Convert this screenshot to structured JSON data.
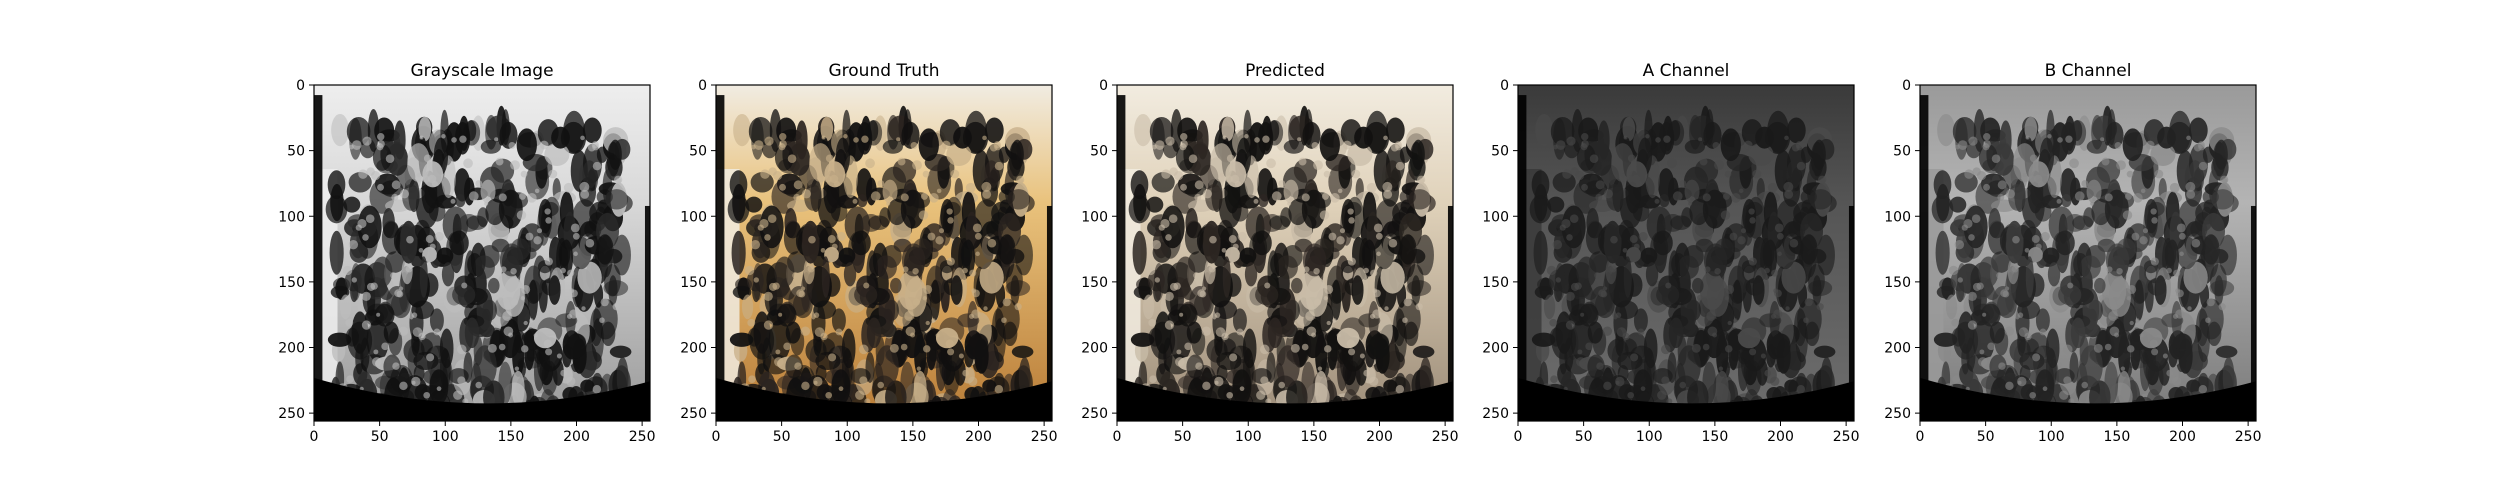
{
  "chart_data": [
    {
      "type": "image",
      "title": "Grayscale Image",
      "xticks": [
        0,
        50,
        100,
        150,
        200,
        250
      ],
      "yticks": [
        0,
        50,
        100,
        150,
        200,
        250
      ],
      "xlim": [
        0,
        256
      ],
      "ylim": [
        256,
        0
      ],
      "colors": [
        "#eeeeee",
        "#d8d8d8",
        "#9a9a9a",
        "#2a2a2a",
        "#111111",
        "#bdbdbd"
      ]
    },
    {
      "type": "image",
      "title": "Ground Truth",
      "xticks": [
        0,
        50,
        100,
        150,
        200,
        250
      ],
      "yticks": [
        0,
        50,
        100,
        150,
        200,
        250
      ],
      "xlim": [
        0,
        256
      ],
      "ylim": [
        256,
        0
      ],
      "colors": [
        "#f1ece2",
        "#e9c27c",
        "#b97c36",
        "#2b2420",
        "#111010",
        "#c8b08a"
      ]
    },
    {
      "type": "image",
      "title": "Predicted",
      "xticks": [
        0,
        50,
        100,
        150,
        200,
        250
      ],
      "yticks": [
        0,
        50,
        100,
        150,
        200,
        250
      ],
      "xlim": [
        0,
        256
      ],
      "ylim": [
        256,
        0
      ],
      "colors": [
        "#f2ece0",
        "#e0d2ba",
        "#9c8c78",
        "#2c2622",
        "#121110",
        "#c9bca8"
      ]
    },
    {
      "type": "image",
      "title": "A Channel",
      "xticks": [
        0,
        50,
        100,
        150,
        200,
        250
      ],
      "yticks": [
        0,
        50,
        100,
        150,
        200,
        250
      ],
      "xlim": [
        0,
        256
      ],
      "ylim": [
        256,
        0
      ],
      "colors": [
        "#3a3a3a",
        "#555555",
        "#6e6e6e",
        "#262626",
        "#1a1a1a",
        "#4a4a4a"
      ]
    },
    {
      "type": "image",
      "title": "B Channel",
      "xticks": [
        0,
        50,
        100,
        150,
        200,
        250
      ],
      "yticks": [
        0,
        50,
        100,
        150,
        200,
        250
      ],
      "xlim": [
        0,
        256
      ],
      "ylim": [
        256,
        0
      ],
      "colors": [
        "#9a9a9a",
        "#b4b4b4",
        "#7a7a7a",
        "#3a3a3a",
        "#222222",
        "#8a8a8a"
      ]
    }
  ]
}
